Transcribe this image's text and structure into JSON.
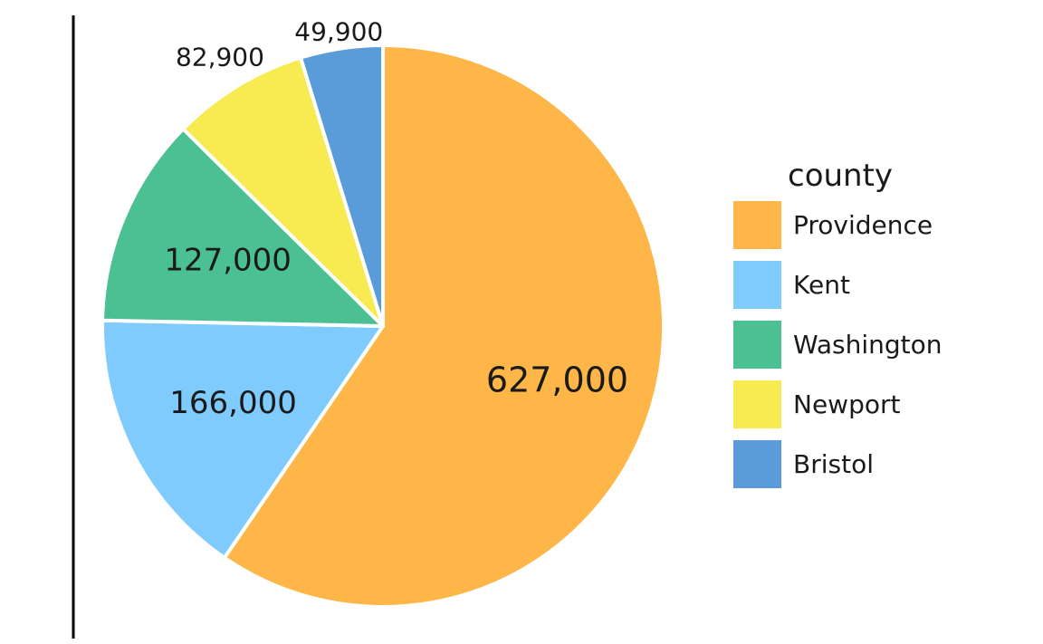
{
  "chart_data": {
    "type": "pie",
    "categories": [
      "Providence",
      "Kent",
      "Washington",
      "Newport",
      "Bristol"
    ],
    "values": [
      627000,
      166000,
      127000,
      82900,
      49900
    ],
    "value_labels": [
      "627,000",
      "166,000",
      "127,000",
      "82,900",
      "49,900"
    ],
    "colors": [
      "#FDB647",
      "#7FCBFD",
      "#4BC092",
      "#F8EA51",
      "#5A9CDA"
    ],
    "start_angle_deg": 0,
    "direction": "clockwise",
    "legend": {
      "title": "county",
      "placement": "right"
    }
  }
}
